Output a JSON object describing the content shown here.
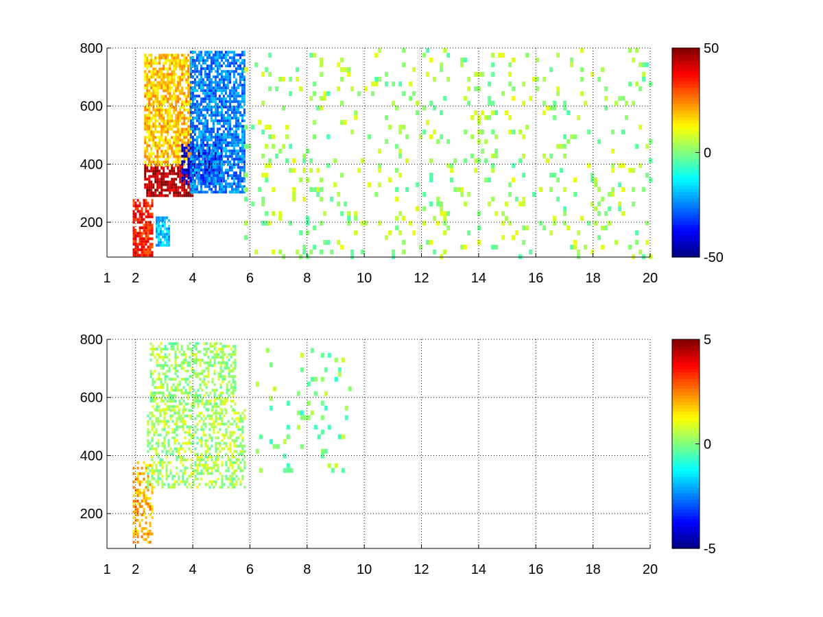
{
  "chart_data": [
    {
      "type": "heatmap",
      "title": "",
      "xlabel": "",
      "ylabel": "",
      "xlim": [
        1,
        20
      ],
      "ylim": [
        80,
        800
      ],
      "x_ticks": [
        1,
        2,
        4,
        6,
        8,
        10,
        12,
        14,
        16,
        18,
        20
      ],
      "y_ticks": [
        200,
        400,
        600,
        800
      ],
      "grid": true,
      "colormap": "jet",
      "clim": [
        -50,
        50
      ],
      "colorbar_ticks": [
        -50,
        0,
        50
      ],
      "features": [
        {
          "desc": "strong positive band",
          "x": [
            2.3,
            4.0
          ],
          "y": [
            290,
            400
          ],
          "value": 45
        },
        {
          "desc": "positive ridge",
          "x": [
            1.9,
            2.6
          ],
          "y": [
            90,
            280
          ],
          "value": 35
        },
        {
          "desc": "positive region",
          "x": [
            2.3,
            3.9
          ],
          "y": [
            400,
            780
          ],
          "value": 18
        },
        {
          "desc": "strong negative band",
          "x": [
            3.6,
            5.0
          ],
          "y": [
            330,
            470
          ],
          "value": -42
        },
        {
          "desc": "negative region",
          "x": [
            3.9,
            5.8
          ],
          "y": [
            300,
            790
          ],
          "value": -25
        },
        {
          "desc": "weak negative patch",
          "x": [
            2.7,
            3.2
          ],
          "y": [
            120,
            220
          ],
          "value": -18
        },
        {
          "desc": "sparse weak noise",
          "x": [
            5.8,
            20
          ],
          "y": [
            80,
            800
          ],
          "value": 3
        }
      ]
    },
    {
      "type": "heatmap",
      "title": "",
      "xlabel": "",
      "ylabel": "",
      "xlim": [
        1,
        20
      ],
      "ylim": [
        80,
        800
      ],
      "x_ticks": [
        1,
        2,
        4,
        6,
        8,
        10,
        12,
        14,
        16,
        18,
        20
      ],
      "y_ticks": [
        200,
        400,
        600,
        800
      ],
      "grid": true,
      "colormap": "jet",
      "clim": [
        -5,
        5
      ],
      "colorbar_ticks": [
        -5,
        0,
        5
      ],
      "features": [
        {
          "desc": "positive ridge",
          "x": [
            1.9,
            2.6
          ],
          "y": [
            100,
            380
          ],
          "value": 2
        },
        {
          "desc": "main sloped band",
          "x": [
            2.4,
            5.8
          ],
          "y": [
            290,
            560
          ],
          "value": 0.4
        },
        {
          "desc": "upper scattered region",
          "x": [
            2.5,
            5.5
          ],
          "y": [
            560,
            790
          ],
          "value": 0.3
        },
        {
          "desc": "isolated points",
          "x": [
            6.2,
            9.5
          ],
          "y": [
            350,
            770
          ],
          "value": 0
        }
      ]
    }
  ]
}
